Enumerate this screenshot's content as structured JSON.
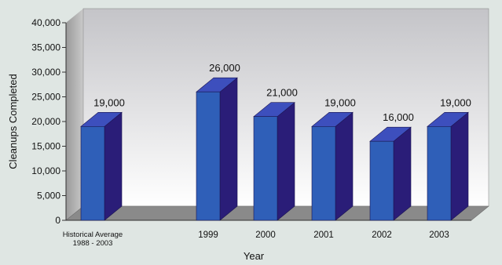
{
  "chart_data": {
    "type": "bar",
    "title": "",
    "xlabel": "Year",
    "ylabel": "Cleanups Completed",
    "ylim": [
      0,
      40000
    ],
    "yticks": [
      "0",
      "5,000",
      "10,000",
      "15,000",
      "20,000",
      "25,000",
      "30,000",
      "35,000",
      "40,000"
    ],
    "categories": [
      "Historical Average 1988 - 2003",
      "1999",
      "2000",
      "2001",
      "2002",
      "2003"
    ],
    "category_lines": [
      [
        "Historical Average",
        "1988 - 2003"
      ],
      [
        "1999"
      ],
      [
        "2000"
      ],
      [
        "2001"
      ],
      [
        "2002"
      ],
      [
        "2003"
      ]
    ],
    "values": [
      19000,
      26000,
      21000,
      19000,
      16000,
      19000
    ],
    "value_labels": [
      "19,000",
      "26,000",
      "21,000",
      "19,000",
      "16,000",
      "19,000"
    ],
    "grid": false,
    "legend": "none"
  },
  "colors": {
    "background": "#dfe6e3",
    "bar_front": "#2f5fb8",
    "bar_side": "#2a1d78",
    "bar_top": "#3d4fbd",
    "floor": "#8a8a8a",
    "wall_top": "#c7c7cb",
    "wall_bottom": "#ffffff"
  }
}
